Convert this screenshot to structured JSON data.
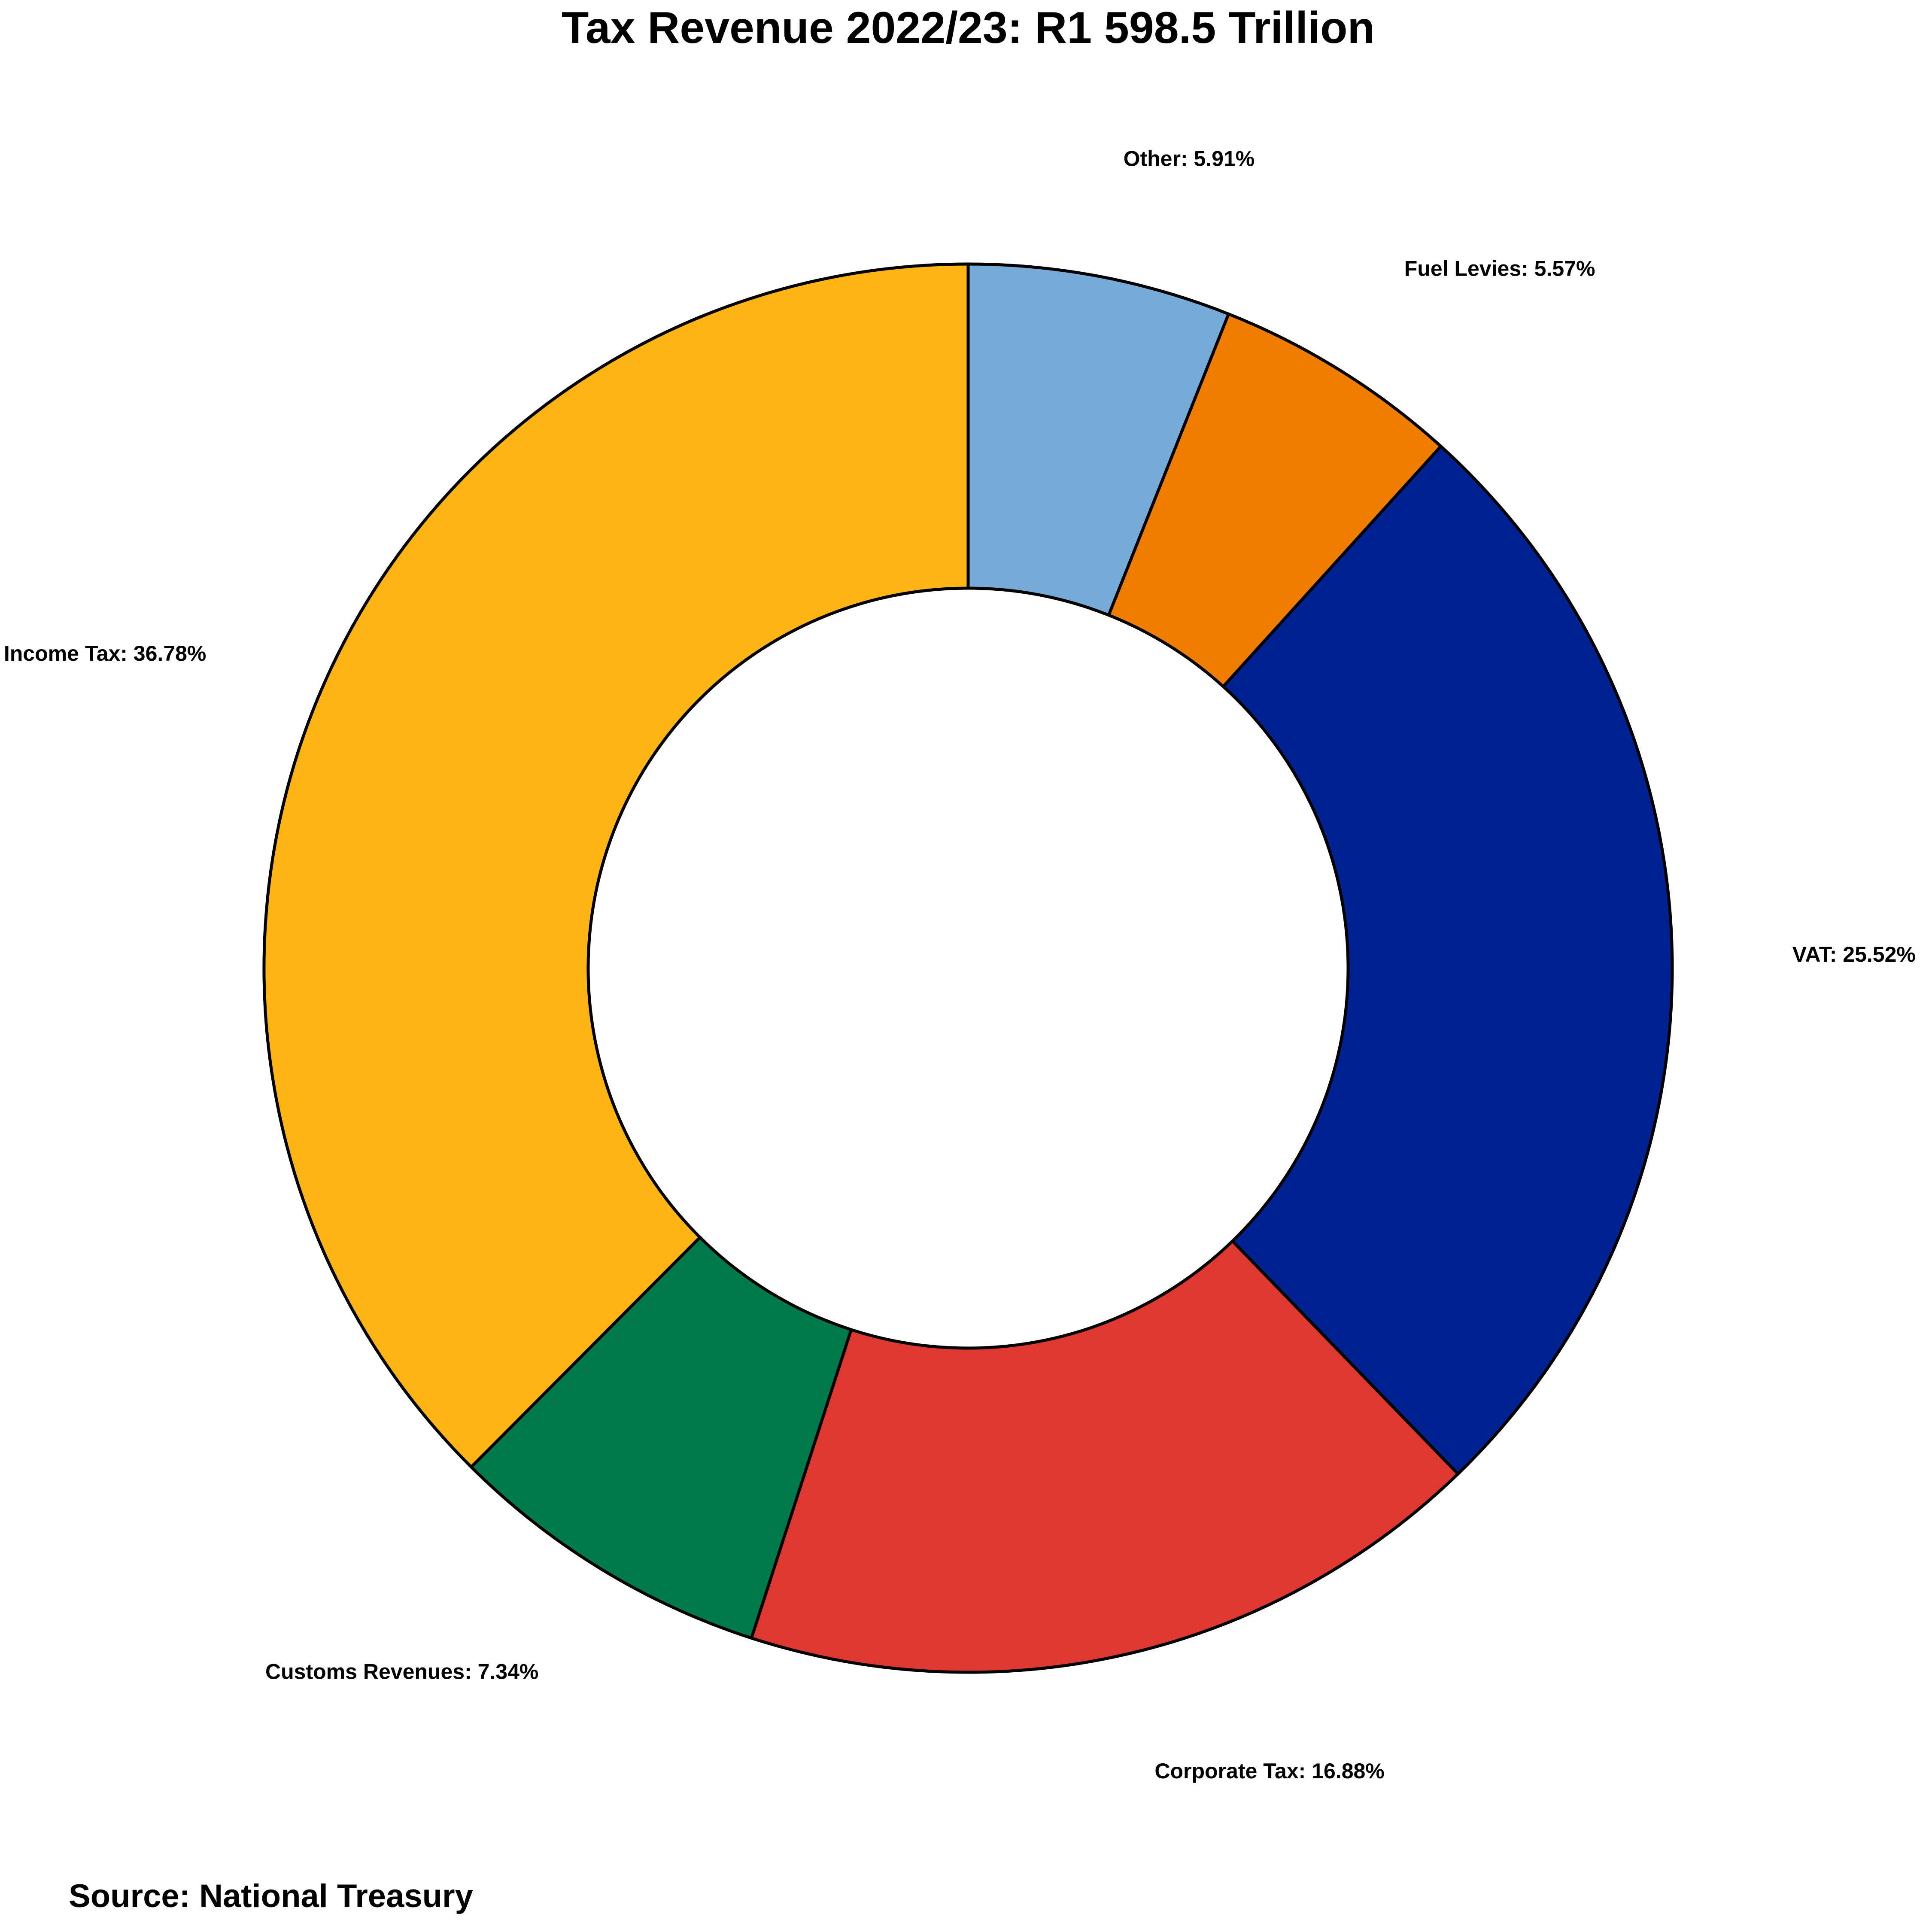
{
  "chart_data": {
    "type": "pie",
    "title": "Tax Revenue 2022/23: R1 598.5 Trillion",
    "source": "Source: National Treasury",
    "donut": true,
    "slices": [
      {
        "label": "Other: 5.91%",
        "name": "Other",
        "value": 5.91,
        "color": "#78aad8"
      },
      {
        "label": "Fuel Levies: 5.57%",
        "name": "Fuel Levies",
        "value": 5.57,
        "color": "#ee7d00"
      },
      {
        "label": "VAT: 25.52%",
        "name": "VAT",
        "value": 25.52,
        "color": "#002291"
      },
      {
        "label": "Corporate Tax: 16.88%",
        "name": "Corporate Tax",
        "value": 16.88,
        "color": "#de3832"
      },
      {
        "label": "Customs Revenues: 7.34%",
        "name": "Customs Revenues",
        "value": 7.34,
        "color": "#007a4d"
      },
      {
        "label": "Income Tax: 36.78%",
        "name": "Income Tax",
        "value": 36.78,
        "color": "#fdb515"
      }
    ]
  }
}
